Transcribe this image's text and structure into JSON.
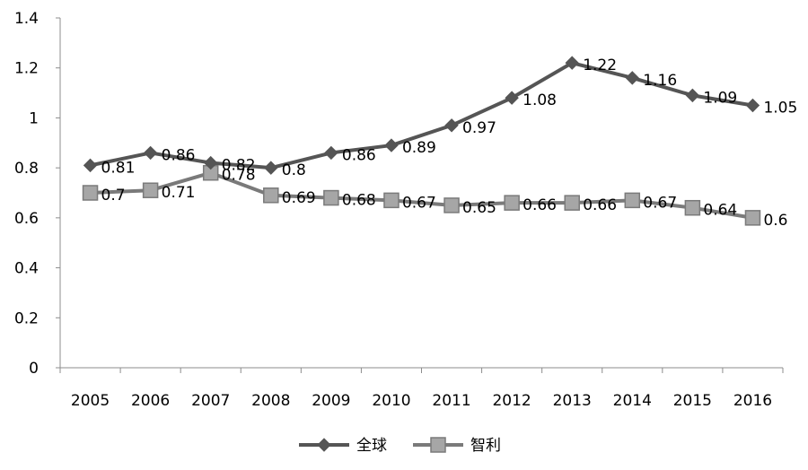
{
  "chart_data": {
    "type": "line",
    "categories": [
      "2005",
      "2006",
      "2007",
      "2008",
      "2009",
      "2010",
      "2011",
      "2012",
      "2013",
      "2014",
      "2015",
      "2016"
    ],
    "series": [
      {
        "name": "全球",
        "marker": "diamond",
        "color": "#555555",
        "values": [
          0.81,
          0.86,
          0.82,
          0.8,
          0.86,
          0.89,
          0.97,
          1.08,
          1.22,
          1.16,
          1.09,
          1.05
        ],
        "labels": [
          "0.81",
          "0.86",
          "0.82",
          "0.8",
          "0.86",
          "0.89",
          "0.97",
          "1.08",
          "1.22",
          "1.16",
          "1.09",
          "1.05"
        ]
      },
      {
        "name": "智利",
        "marker": "square",
        "color": "#7a7a7a",
        "marker_fill": "#a6a6a6",
        "values": [
          0.7,
          0.71,
          0.78,
          0.69,
          0.68,
          0.67,
          0.65,
          0.66,
          0.66,
          0.67,
          0.64,
          0.6
        ],
        "labels": [
          "0.7",
          "0.71",
          "0.78",
          "0.69",
          "0.68",
          "0.67",
          "0.65",
          "0.66",
          "0.66",
          "0.67",
          "0.64",
          "0.6"
        ]
      }
    ],
    "ylim": [
      0,
      1.4
    ],
    "yticks": [
      "0",
      "0.2",
      "0.4",
      "0.6",
      "0.8",
      "1",
      "1.2",
      "1.4"
    ],
    "title": "",
    "xlabel": "",
    "ylabel": "",
    "grid": false,
    "legend_position": "bottom"
  }
}
